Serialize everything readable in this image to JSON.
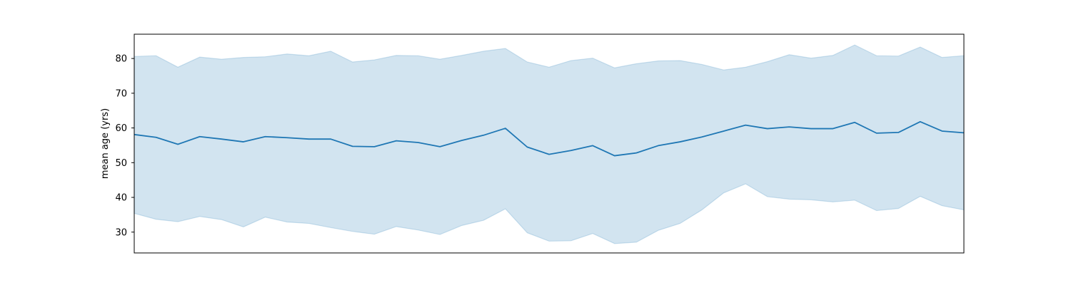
{
  "chart_data": {
    "type": "area",
    "title": "",
    "xlabel": "",
    "ylabel": "mean age (yrs)",
    "ylim": [
      24,
      87
    ],
    "yticks": [
      30,
      40,
      50,
      60,
      70,
      80
    ],
    "x_ticks_shown": false,
    "grid": false,
    "legend": "none",
    "colors": {
      "line": "#1f77b4",
      "band": "#1f77b4"
    },
    "x": [
      0,
      1,
      2,
      3,
      4,
      5,
      6,
      7,
      8,
      9,
      10,
      11,
      12,
      13,
      14,
      15,
      16,
      17,
      18,
      19,
      20,
      21,
      22,
      23,
      24,
      25,
      26,
      27,
      28,
      29,
      30,
      31,
      32,
      33,
      34,
      35,
      36,
      37,
      38
    ],
    "series": [
      {
        "values": [
          58.1,
          57.3,
          55.3,
          57.5,
          56.8,
          56.0,
          57.5,
          57.2,
          56.8,
          56.8,
          54.7,
          54.6,
          56.3,
          55.8,
          54.6,
          56.4,
          57.9,
          59.9,
          54.5,
          52.4,
          53.5,
          54.9,
          52.0,
          52.8,
          54.9,
          56.0,
          57.4,
          59.1,
          60.8,
          59.8,
          60.3,
          59.8,
          59.8,
          61.6,
          58.5,
          58.7,
          61.8,
          59.1,
          58.6
        ],
        "band_lower": [
          35.4,
          33.7,
          33.0,
          34.5,
          33.6,
          31.5,
          34.3,
          32.9,
          32.5,
          31.3,
          30.2,
          29.4,
          31.6,
          30.6,
          29.3,
          31.9,
          33.4,
          36.7,
          29.8,
          27.4,
          27.5,
          29.6,
          26.7,
          27.1,
          30.5,
          32.5,
          36.4,
          41.3,
          43.9,
          40.2,
          39.5,
          39.3,
          38.7,
          39.2,
          36.2,
          36.8,
          40.3,
          37.6,
          36.4
        ],
        "band_upper": [
          80.6,
          80.8,
          77.5,
          80.4,
          79.8,
          80.3,
          80.5,
          81.3,
          80.8,
          82.1,
          79.0,
          79.6,
          80.9,
          80.8,
          79.8,
          80.9,
          82.1,
          82.9,
          79.0,
          77.5,
          79.4,
          80.1,
          77.3,
          78.5,
          79.3,
          79.4,
          78.3,
          76.7,
          77.5,
          79.1,
          81.1,
          80.1,
          80.9,
          83.9,
          80.8,
          80.7,
          83.3,
          80.3,
          80.8
        ]
      }
    ]
  }
}
